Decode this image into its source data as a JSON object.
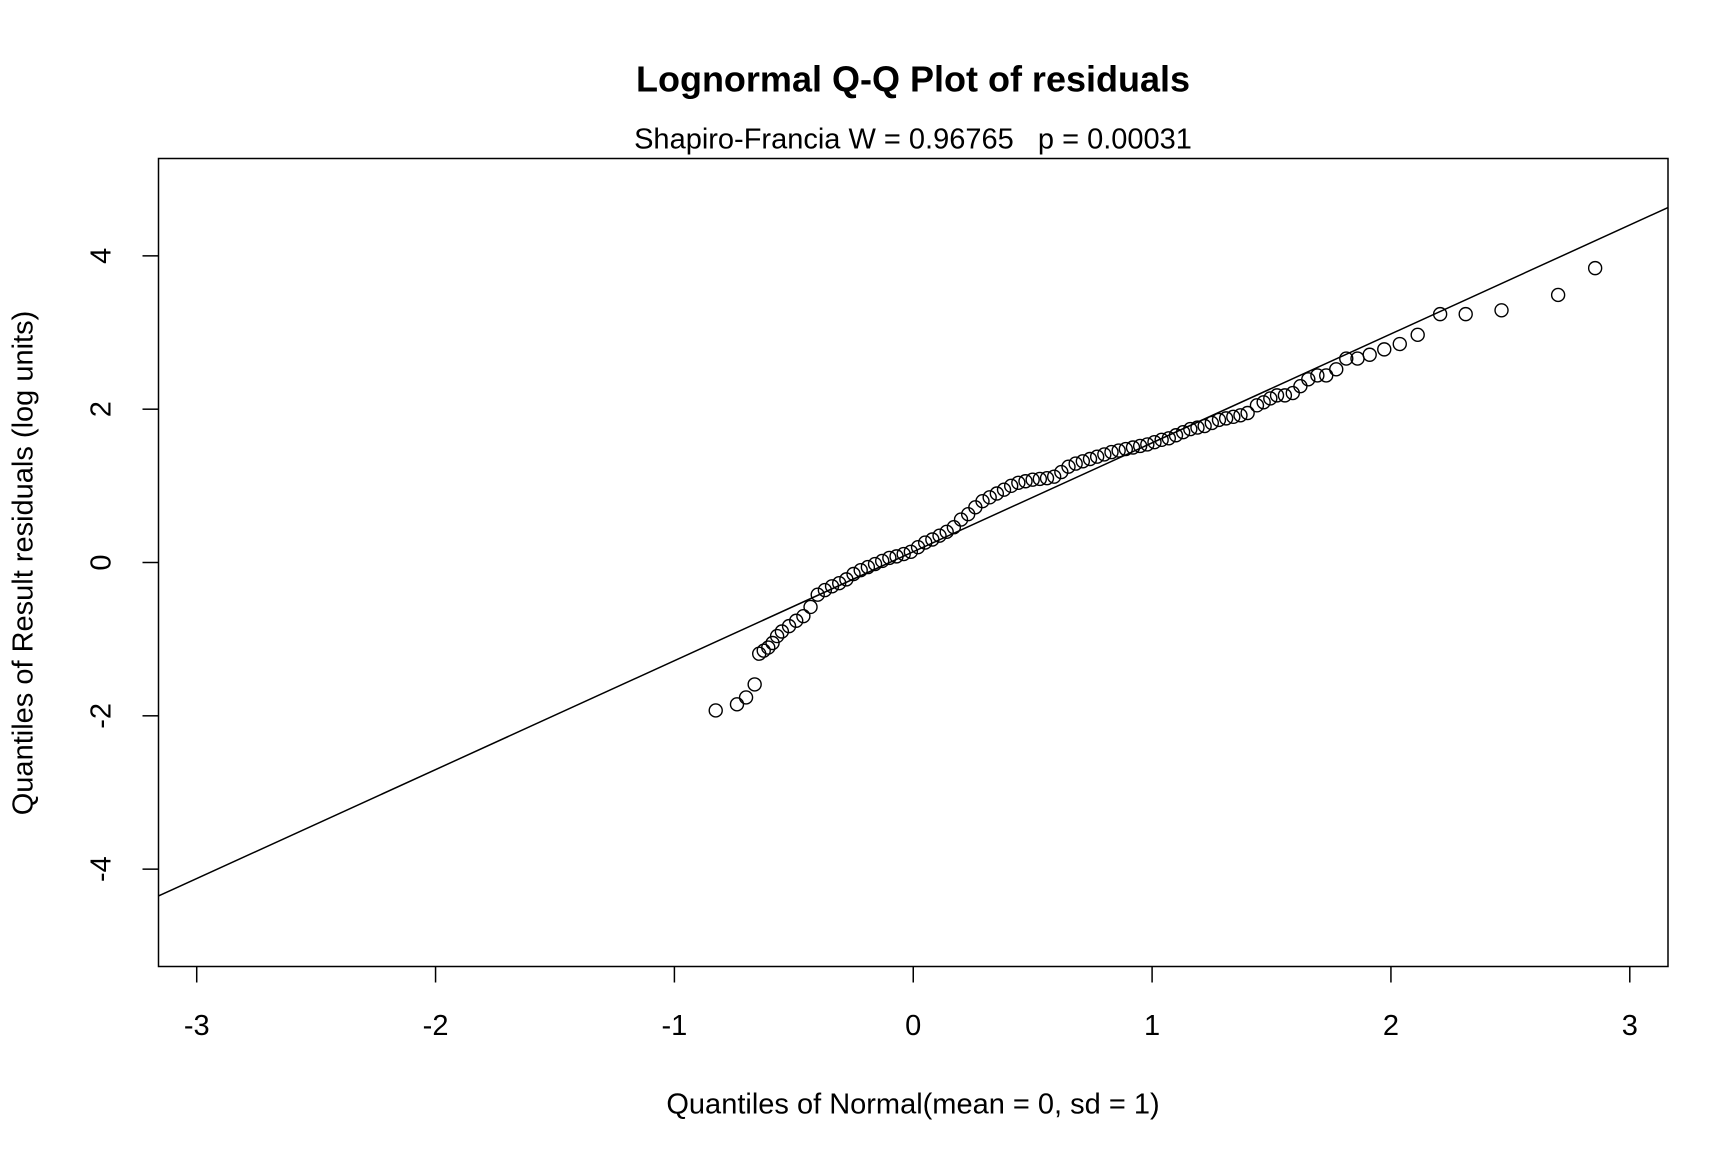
{
  "chart_data": {
    "type": "scatter",
    "title": "Lognormal Q-Q Plot of residuals",
    "subtitle": "Shapiro-Francia W = 0.96765   p = 0.00031",
    "xlabel": "Quantiles of Normal(mean = 0, sd = 1)",
    "ylabel": "Quantiles of Result residuals (log units)",
    "xlim": [
      -3.16,
      3.16
    ],
    "ylim": [
      -5.27,
      5.27
    ],
    "xticks": [
      -3,
      -2,
      -1,
      0,
      1,
      2,
      3
    ],
    "yticks": [
      -4,
      -2,
      0,
      2,
      4
    ],
    "color": "#000000",
    "line": {
      "x": [
        -3.16,
        3.16
      ],
      "y": [
        -4.35,
        4.63
      ]
    },
    "x": [
      -0.827,
      -0.738,
      -0.7,
      -0.664,
      -0.645,
      -0.626,
      -0.607,
      -0.589,
      -0.57,
      -0.55,
      -0.52,
      -0.49,
      -0.46,
      -0.43,
      -0.4,
      -0.37,
      -0.34,
      -0.31,
      -0.28,
      -0.25,
      -0.22,
      -0.19,
      -0.16,
      -0.13,
      -0.1,
      -0.07,
      -0.04,
      -0.01,
      0.02,
      0.05,
      0.08,
      0.11,
      0.14,
      0.17,
      0.2,
      0.23,
      0.26,
      0.29,
      0.32,
      0.35,
      0.38,
      0.41,
      0.44,
      0.47,
      0.5,
      0.53,
      0.56,
      0.59,
      0.62,
      0.65,
      0.68,
      0.71,
      0.74,
      0.77,
      0.8,
      0.83,
      0.86,
      0.89,
      0.92,
      0.95,
      0.98,
      1.01,
      1.04,
      1.07,
      1.1,
      1.13,
      1.16,
      1.19,
      1.22,
      1.25,
      1.28,
      1.31,
      1.34,
      1.37,
      1.4,
      1.439,
      1.467,
      1.495,
      1.523,
      1.556,
      1.589,
      1.621,
      1.654,
      1.692,
      1.729,
      1.771,
      1.813,
      1.86,
      1.911,
      1.972,
      2.037,
      2.112,
      2.206,
      2.313,
      2.463,
      2.7,
      2.855
    ],
    "values": [
      -1.93,
      -1.85,
      -1.76,
      -1.59,
      -1.19,
      -1.15,
      -1.11,
      -1.05,
      -0.96,
      -0.9,
      -0.83,
      -0.76,
      -0.7,
      -0.58,
      -0.42,
      -0.36,
      -0.31,
      -0.27,
      -0.22,
      -0.15,
      -0.1,
      -0.06,
      -0.02,
      0.02,
      0.06,
      0.08,
      0.11,
      0.14,
      0.2,
      0.26,
      0.3,
      0.35,
      0.4,
      0.46,
      0.56,
      0.63,
      0.72,
      0.8,
      0.85,
      0.9,
      0.95,
      1.0,
      1.04,
      1.06,
      1.08,
      1.09,
      1.1,
      1.12,
      1.18,
      1.25,
      1.29,
      1.32,
      1.35,
      1.38,
      1.41,
      1.44,
      1.46,
      1.48,
      1.5,
      1.52,
      1.54,
      1.57,
      1.6,
      1.62,
      1.66,
      1.7,
      1.74,
      1.76,
      1.78,
      1.82,
      1.86,
      1.88,
      1.9,
      1.92,
      1.95,
      2.05,
      2.09,
      2.14,
      2.18,
      2.18,
      2.21,
      2.3,
      2.39,
      2.44,
      2.44,
      2.52,
      2.66,
      2.66,
      2.71,
      2.78,
      2.85,
      2.97,
      3.24,
      3.24,
      3.29,
      3.49,
      3.84
    ]
  }
}
